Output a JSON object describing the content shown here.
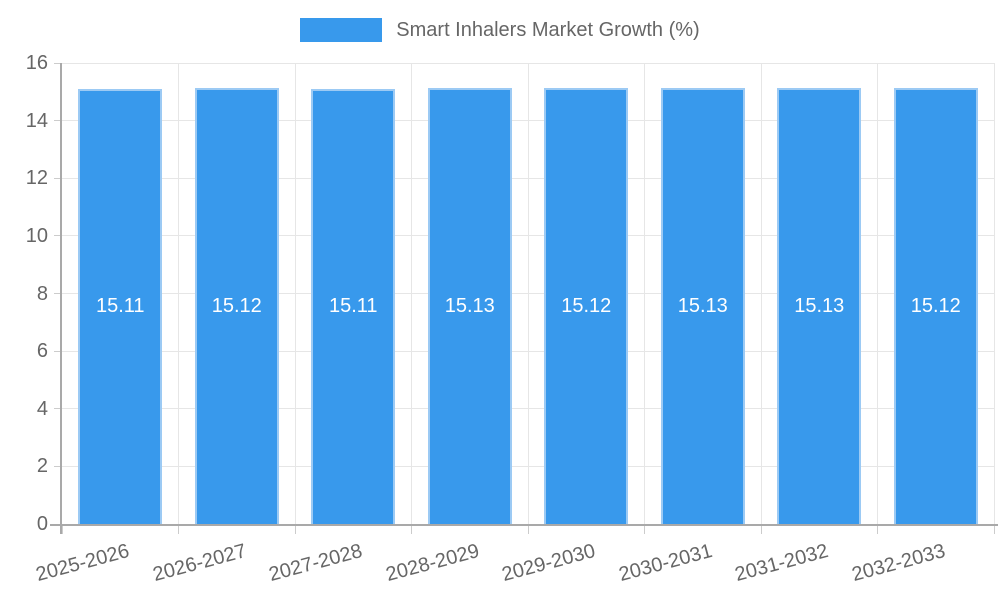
{
  "legend": {
    "label": "Smart Inhalers Market Growth (%)"
  },
  "chart_data": {
    "type": "bar",
    "title": "Smart Inhalers Market Growth (%)",
    "categories": [
      "2025-2026",
      "2026-2027",
      "2027-2028",
      "2028-2029",
      "2029-2030",
      "2030-2031",
      "2031-2032",
      "2032-2033"
    ],
    "values": [
      15.11,
      15.12,
      15.11,
      15.13,
      15.12,
      15.13,
      15.13,
      15.12
    ],
    "value_labels": [
      "15.11",
      "15.12",
      "15.11",
      "15.13",
      "15.12",
      "15.13",
      "15.13",
      "15.12"
    ],
    "xlabel": "",
    "ylabel": "",
    "ylim": [
      0,
      16
    ],
    "ytick_step": 2,
    "yticks": [
      0,
      2,
      4,
      6,
      8,
      10,
      12,
      14,
      16
    ],
    "grid": true,
    "legend_position": "top",
    "x_label_rotation_deg": -15,
    "colors": {
      "bar_fill": "#3899ec",
      "bar_border": "#9ccaf4",
      "value_label": "#ffffff",
      "axis_text": "#666666",
      "grid_line": "#e6e6e6",
      "axis_line": "#a9a9a9",
      "tick_mark": "#cccccc",
      "background": "#ffffff"
    }
  }
}
